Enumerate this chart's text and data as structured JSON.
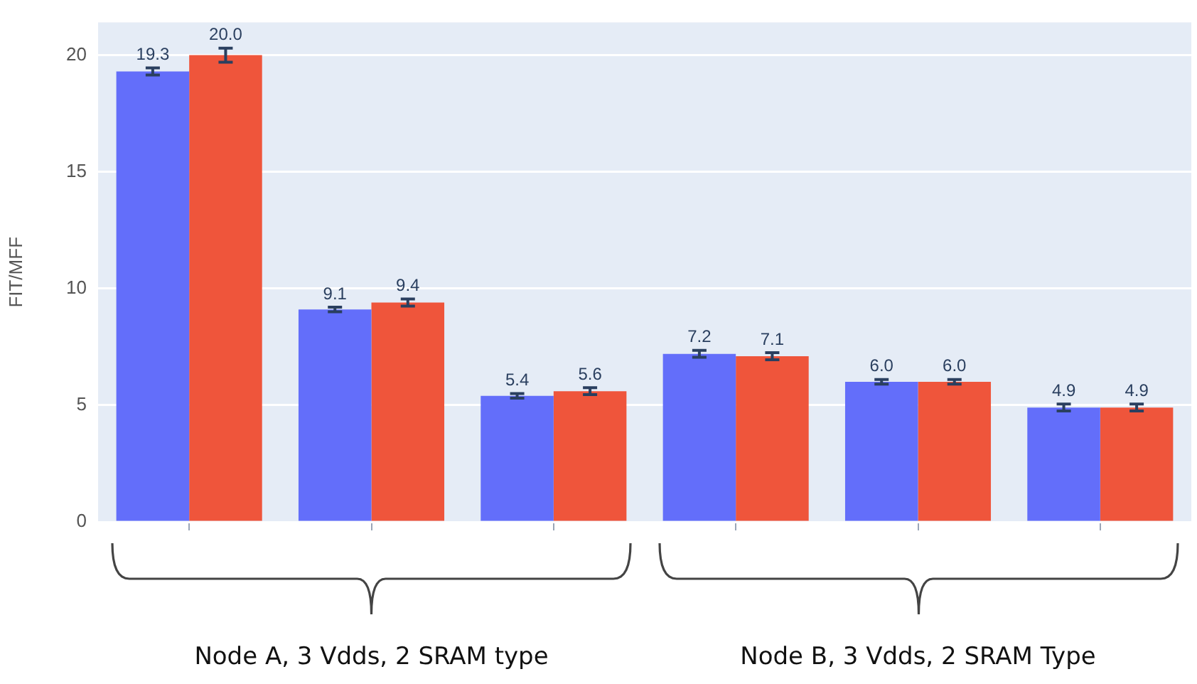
{
  "chart_data": {
    "type": "bar",
    "ylabel": "FIT/MFF",
    "categories": [
      null,
      null,
      null,
      null,
      null,
      null
    ],
    "series": [
      {
        "color": "#636efa",
        "values": [
          19.3,
          9.1,
          5.4,
          7.2,
          6.0,
          4.9
        ],
        "errors": [
          0.15,
          0.1,
          0.1,
          0.15,
          0.1,
          0.15
        ],
        "value_labels": [
          "19.3",
          "9.1",
          "5.4",
          "7.2",
          "6.0",
          "4.9"
        ]
      },
      {
        "color": "#ef553b",
        "values": [
          20.0,
          9.4,
          5.6,
          7.1,
          6.0,
          4.9
        ],
        "errors": [
          0.3,
          0.15,
          0.15,
          0.15,
          0.1,
          0.15
        ],
        "value_labels": [
          "20.0",
          "9.4",
          "5.6",
          "7.1",
          "6.0",
          "4.9"
        ]
      }
    ],
    "ylim": [
      0,
      21.4
    ],
    "yticks": [
      0,
      5,
      10,
      15,
      20
    ],
    "grid": "y",
    "legend": false,
    "annotations": [
      "Node A, 3 Vdds, 2 SRAM type",
      "Node B, 3 Vdds, 2 SRAM Type"
    ]
  }
}
